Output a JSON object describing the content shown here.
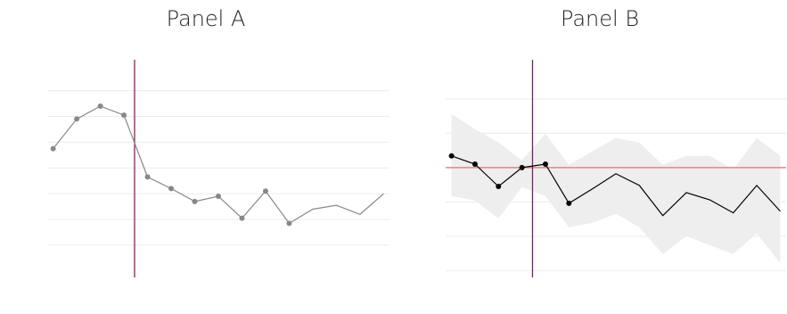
{
  "chart_data": [
    {
      "type": "line",
      "title": "Panel A",
      "x": [
        0,
        1,
        2,
        3,
        4,
        5,
        6,
        7,
        8,
        9,
        10,
        11,
        12,
        13,
        14
      ],
      "xlim": [
        -0.25,
        14.25
      ],
      "ylim": [
        -1.25,
        7.2
      ],
      "yticks": [
        0,
        1,
        2,
        3,
        4,
        5,
        6
      ],
      "grid": true,
      "series": [
        {
          "color": "#888888",
          "values": [
            3.75,
            4.9,
            5.4,
            5.05,
            2.65,
            2.2,
            1.7,
            1.9,
            1.05,
            2.1,
            0.85,
            1.4,
            1.55,
            1.2,
            2.0
          ],
          "markers": [
            true,
            true,
            true,
            true,
            true,
            true,
            true,
            true,
            true,
            true,
            true,
            false,
            false,
            false,
            false
          ]
        }
      ],
      "vline": {
        "value": 3.45,
        "color": "#8e1f5a"
      }
    },
    {
      "type": "line",
      "title": "Panel B",
      "x": [
        0,
        1,
        2,
        3,
        4,
        5,
        6,
        7,
        8,
        9,
        10,
        11,
        12,
        13,
        14
      ],
      "xlim": [
        -0.25,
        14.25
      ],
      "ylim": [
        -3.2,
        3.14
      ],
      "yticks": [
        -3,
        -2,
        -1,
        1,
        2
      ],
      "grid": true,
      "band": {
        "color": "#eeeeee",
        "upper": [
          1.56,
          1.12,
          0.73,
          0.21,
          0.99,
          0.08,
          0.47,
          0.86,
          0.73,
          0.08,
          0.34,
          0.34,
          -0.05,
          0.86,
          0.34
        ],
        "lower": [
          -0.83,
          -0.96,
          -1.48,
          -0.57,
          -0.83,
          -1.74,
          -1.61,
          -1.35,
          -1.74,
          -2.52,
          -2.0,
          -2.26,
          -2.52,
          -1.92,
          -2.78
        ]
      },
      "series": [
        {
          "color": "#000000",
          "values": [
            0.34,
            0.1,
            -0.55,
            0,
            0.1,
            -1.04,
            -0.62,
            -0.18,
            -0.52,
            -1.4,
            -0.73,
            -0.94,
            -1.32,
            -0.52,
            -1.27
          ],
          "markers": [
            true,
            true,
            true,
            true,
            true,
            true,
            false,
            false,
            false,
            false,
            false,
            false,
            false,
            false,
            false
          ]
        }
      ],
      "hline": {
        "value": 0,
        "color": "#f08080"
      },
      "vline": {
        "value": 3.45,
        "color": "#7a1f6e"
      }
    }
  ]
}
